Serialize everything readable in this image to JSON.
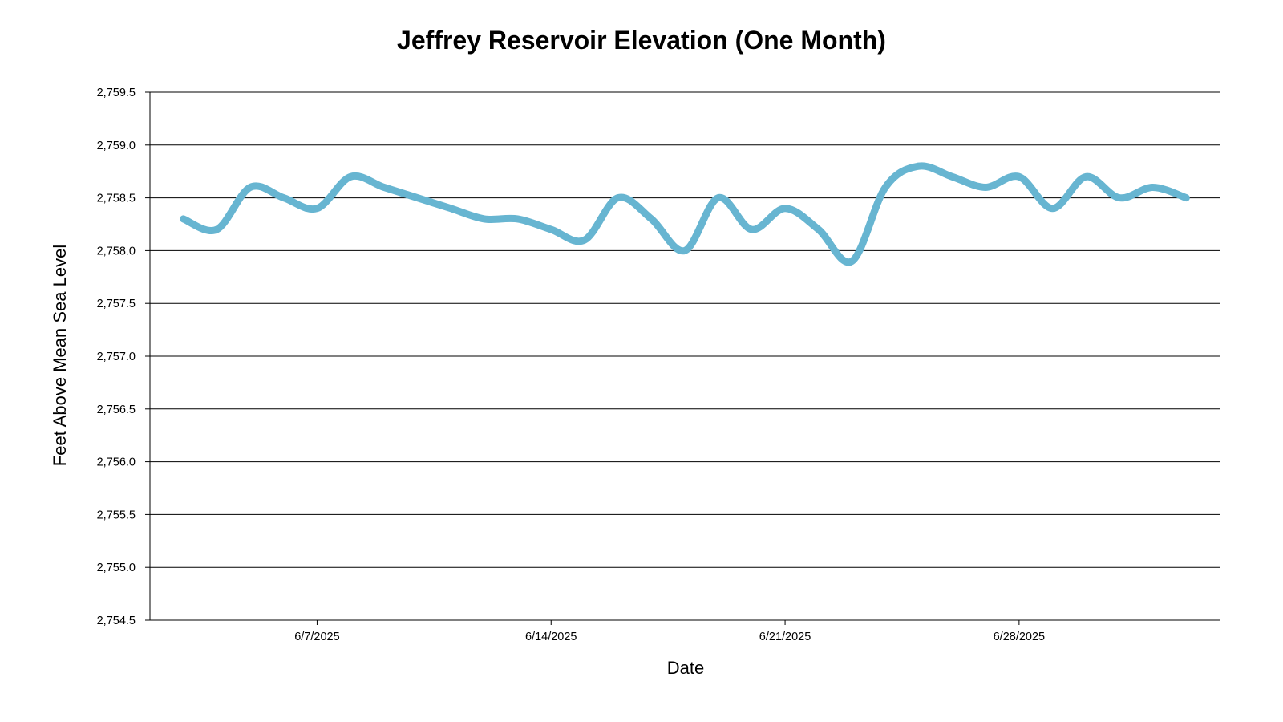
{
  "colors": {
    "series": "#67b5d1",
    "grid": "#000000",
    "text": "#000000",
    "background": "#ffffff"
  },
  "chart_data": {
    "type": "line",
    "title": "Jeffrey Reservoir Elevation (One Month)",
    "xlabel": "Date",
    "ylabel": "Feet Above Mean Sea Level",
    "ylim": [
      2754.5,
      2759.5
    ],
    "xlim": [
      "2025-06-02",
      "2025-07-04"
    ],
    "grid": "horizontal",
    "legend": "none",
    "y_ticks": [
      {
        "value": 2759.5,
        "label": "2,759.5"
      },
      {
        "value": 2759.0,
        "label": "2,759.0"
      },
      {
        "value": 2758.5,
        "label": "2,758.5"
      },
      {
        "value": 2758.0,
        "label": "2,758.0"
      },
      {
        "value": 2757.5,
        "label": "2,757.5"
      },
      {
        "value": 2757.0,
        "label": "2,757.0"
      },
      {
        "value": 2756.5,
        "label": "2,756.5"
      },
      {
        "value": 2756.0,
        "label": "2,756.0"
      },
      {
        "value": 2755.5,
        "label": "2,755.5"
      },
      {
        "value": 2755.0,
        "label": "2,755.0"
      },
      {
        "value": 2754.5,
        "label": "2,754.5"
      }
    ],
    "x_ticks": [
      {
        "date": "2025-06-07",
        "label": "6/7/2025"
      },
      {
        "date": "2025-06-14",
        "label": "6/14/2025"
      },
      {
        "date": "2025-06-21",
        "label": "6/21/2025"
      },
      {
        "date": "2025-06-28",
        "label": "6/28/2025"
      }
    ],
    "series": [
      {
        "x": [
          "2025-06-03",
          "2025-06-04",
          "2025-06-05",
          "2025-06-06",
          "2025-06-07",
          "2025-06-08",
          "2025-06-09",
          "2025-06-10",
          "2025-06-11",
          "2025-06-12",
          "2025-06-13",
          "2025-06-14",
          "2025-06-15",
          "2025-06-16",
          "2025-06-17",
          "2025-06-18",
          "2025-06-19",
          "2025-06-20",
          "2025-06-21",
          "2025-06-22",
          "2025-06-23",
          "2025-06-24",
          "2025-06-25",
          "2025-06-26",
          "2025-06-27",
          "2025-06-28",
          "2025-06-29",
          "2025-06-30",
          "2025-07-01",
          "2025-07-02",
          "2025-07-03"
        ],
        "values": [
          2758.3,
          2758.2,
          2758.6,
          2758.5,
          2758.4,
          2758.7,
          2758.6,
          2758.5,
          2758.4,
          2758.3,
          2758.3,
          2758.2,
          2758.1,
          2758.5,
          2758.3,
          2758.0,
          2758.5,
          2758.2,
          2758.4,
          2758.2,
          2757.9,
          2758.6,
          2758.8,
          2758.7,
          2758.6,
          2758.7,
          2758.4,
          2758.7,
          2758.5,
          2758.6,
          2758.5
        ]
      }
    ]
  }
}
